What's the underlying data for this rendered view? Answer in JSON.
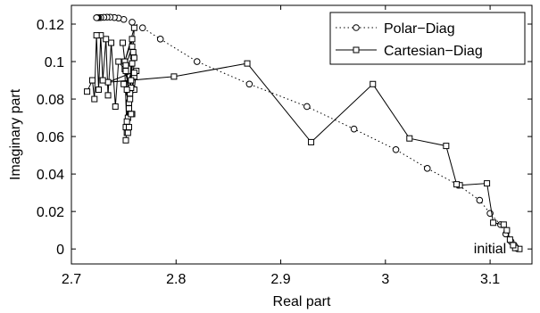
{
  "chart_data": {
    "type": "line",
    "title": "",
    "xlabel": "Real part",
    "ylabel": "Imaginary part",
    "xlim": [
      2.7,
      3.14
    ],
    "ylim": [
      -0.008,
      0.13
    ],
    "xticks": [
      2.7,
      2.8,
      2.9,
      3.0,
      3.1
    ],
    "xtick_labels": [
      "2.7",
      "2.8",
      "2.9",
      "3",
      "3.1"
    ],
    "yticks": [
      0,
      0.02,
      0.04,
      0.06,
      0.08,
      0.1,
      0.12
    ],
    "ytick_labels": [
      "0",
      "0.02",
      "0.04",
      "0.06",
      "0.08",
      "0.1",
      "0.12"
    ],
    "grid": false,
    "legend_position": "top-right",
    "annotations": [
      {
        "text": "initial",
        "x": 3.124,
        "y": 0.0005
      }
    ],
    "series": [
      {
        "name": "Polar−Diag",
        "line_style": "dotted",
        "marker": "circle",
        "color": "#000000",
        "x": [
          3.125,
          3.123,
          3.12,
          3.115,
          3.11,
          3.1,
          3.09,
          3.07,
          3.04,
          3.01,
          2.97,
          2.925,
          2.87,
          2.82,
          2.785,
          2.768,
          2.758,
          2.75,
          2.745,
          2.741,
          2.737,
          2.734,
          2.731,
          2.728,
          2.726,
          2.725,
          2.7245,
          2.724
        ],
        "y": [
          0.0005,
          0.002,
          0.004,
          0.008,
          0.013,
          0.019,
          0.026,
          0.034,
          0.043,
          0.053,
          0.064,
          0.076,
          0.088,
          0.1,
          0.112,
          0.118,
          0.121,
          0.1225,
          0.1232,
          0.1235,
          0.1237,
          0.1237,
          0.1236,
          0.1235,
          0.1234,
          0.1234,
          0.1234,
          0.1234
        ]
      },
      {
        "name": "Cartesian−Diag",
        "line_style": "solid",
        "marker": "square",
        "color": "#000000",
        "x": [
          3.128,
          3.124,
          3.122,
          3.119,
          3.116,
          3.113,
          3.103,
          3.097,
          3.071,
          3.068,
          3.058,
          3.023,
          2.988,
          2.929,
          2.868,
          2.798,
          2.735,
          2.762,
          2.76,
          2.755,
          2.758,
          2.75,
          2.76,
          2.752,
          2.758,
          2.755,
          2.757,
          2.752,
          2.759,
          2.754,
          2.756,
          2.751,
          2.753,
          2.759,
          2.755,
          2.753,
          2.757,
          2.76,
          2.751,
          2.758,
          2.754,
          2.76,
          2.756,
          2.752,
          2.758,
          2.755,
          2.753,
          2.76,
          2.757,
          2.749,
          2.752,
          2.745,
          2.742,
          2.738,
          2.735,
          2.733,
          2.73,
          2.728,
          2.726,
          2.724,
          2.722,
          2.72,
          2.715
        ],
        "y": [
          0.0,
          0.0005,
          0.002,
          0.005,
          0.01,
          0.013,
          0.014,
          0.035,
          0.034,
          0.0345,
          0.055,
          0.059,
          0.088,
          0.057,
          0.099,
          0.092,
          0.089,
          0.095,
          0.085,
          0.078,
          0.072,
          0.088,
          0.092,
          0.065,
          0.099,
          0.078,
          0.086,
          0.058,
          0.103,
          0.07,
          0.083,
          0.096,
          0.062,
          0.105,
          0.075,
          0.068,
          0.09,
          0.118,
          0.1,
          0.112,
          0.062,
          0.094,
          0.08,
          0.098,
          0.108,
          0.065,
          0.085,
          0.102,
          0.072,
          0.11,
          0.095,
          0.1,
          0.076,
          0.11,
          0.082,
          0.112,
          0.09,
          0.114,
          0.085,
          0.114,
          0.08,
          0.09,
          0.084
        ]
      }
    ]
  }
}
